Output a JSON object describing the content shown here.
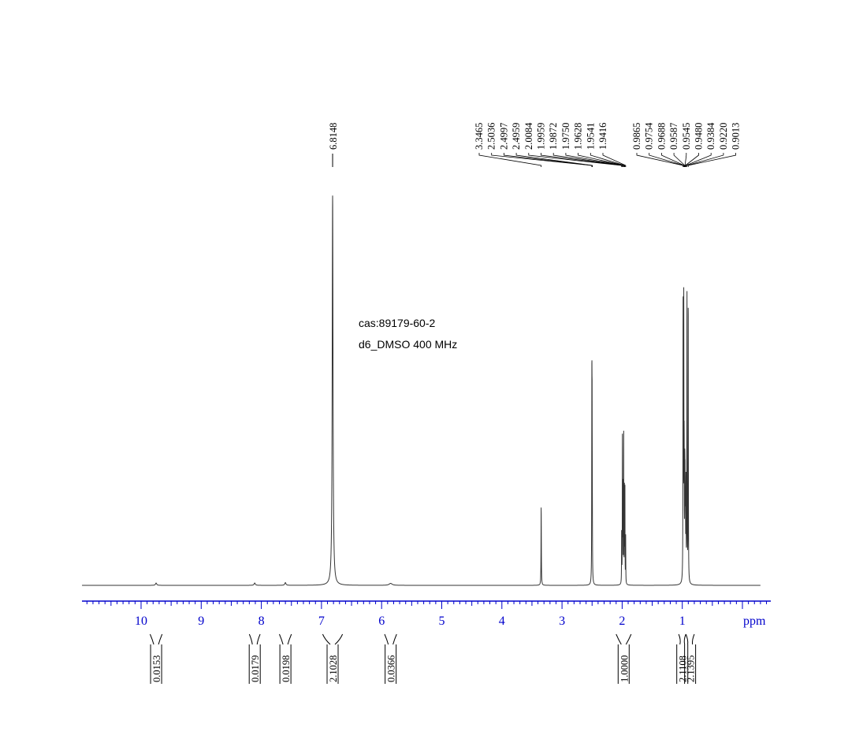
{
  "chart_data": {
    "type": "line",
    "x_unit": "ppm",
    "xlim": [
      11.0,
      -0.3
    ],
    "ylim": [
      0,
      1.0
    ],
    "x_ticks": [
      10,
      9,
      8,
      7,
      6,
      5,
      4,
      3,
      2,
      1
    ],
    "annotation": [
      "cas:89179-60-2",
      "d6_DMSO  400 MHz"
    ],
    "peaks": [
      {
        "ppm": 9.75,
        "height": 0.006,
        "width": 0.012
      },
      {
        "ppm": 8.11,
        "height": 0.006,
        "width": 0.012
      },
      {
        "ppm": 7.6,
        "height": 0.007,
        "width": 0.012
      },
      {
        "ppm": 6.8148,
        "height": 1.0,
        "width": 0.008
      },
      {
        "ppm": 5.85,
        "height": 0.005,
        "width": 0.03
      },
      {
        "ppm": 3.3465,
        "height": 0.205,
        "width": 0.003
      },
      {
        "ppm": 2.5036,
        "height": 0.48,
        "width": 0.0025
      },
      {
        "ppm": 2.4997,
        "height": 0.36,
        "width": 0.0025
      },
      {
        "ppm": 2.4959,
        "height": 0.12,
        "width": 0.0025
      },
      {
        "ppm": 2.0084,
        "height": 0.14,
        "width": 0.002
      },
      {
        "ppm": 1.9959,
        "height": 0.38,
        "width": 0.002
      },
      {
        "ppm": 1.9872,
        "height": 0.27,
        "width": 0.002
      },
      {
        "ppm": 1.975,
        "height": 0.4,
        "width": 0.002
      },
      {
        "ppm": 1.9628,
        "height": 0.24,
        "width": 0.002
      },
      {
        "ppm": 1.9541,
        "height": 0.26,
        "width": 0.002
      },
      {
        "ppm": 1.9416,
        "height": 0.12,
        "width": 0.002
      },
      {
        "ppm": 0.9865,
        "height": 0.72,
        "width": 0.0025
      },
      {
        "ppm": 0.9754,
        "height": 0.68,
        "width": 0.0025
      },
      {
        "ppm": 0.9688,
        "height": 0.3,
        "width": 0.0025
      },
      {
        "ppm": 0.9587,
        "height": 0.25,
        "width": 0.0025
      },
      {
        "ppm": 0.9545,
        "height": 0.2,
        "width": 0.0025
      },
      {
        "ppm": 0.948,
        "height": 0.18,
        "width": 0.0025
      },
      {
        "ppm": 0.9384,
        "height": 0.25,
        "width": 0.0025
      },
      {
        "ppm": 0.922,
        "height": 0.76,
        "width": 0.0025
      },
      {
        "ppm": 0.9013,
        "height": 0.75,
        "width": 0.0025
      }
    ],
    "peak_labels": {
      "single": {
        "ppm": 6.8148,
        "label": "6.8148"
      },
      "group1": {
        "labels": [
          "3.3465",
          "2.5036",
          "2.4997",
          "2.4959",
          "2.0084",
          "1.9959",
          "1.9872",
          "1.9750",
          "1.9628",
          "1.9541",
          "1.9416"
        ],
        "ppm": [
          3.3465,
          2.5036,
          2.4997,
          2.4959,
          2.0084,
          1.9959,
          1.9872,
          1.975,
          1.9628,
          1.9541,
          1.9416
        ]
      },
      "group2": {
        "labels": [
          "0.9865",
          "0.9754",
          "0.9688",
          "0.9587",
          "0.9545",
          "0.9480",
          "0.9384",
          "0.9220",
          "0.9013"
        ],
        "ppm": [
          0.9865,
          0.9754,
          0.9688,
          0.9587,
          0.9545,
          0.948,
          0.9384,
          0.922,
          0.9013
        ]
      }
    },
    "integrals": [
      {
        "from": 9.85,
        "to": 9.65,
        "value": "0.0153"
      },
      {
        "from": 8.2,
        "to": 8.02,
        "value": "0.0179"
      },
      {
        "from": 7.7,
        "to": 7.5,
        "value": "0.0198"
      },
      {
        "from": 6.98,
        "to": 6.65,
        "value": "2.1028"
      },
      {
        "from": 5.95,
        "to": 5.75,
        "value": "0.0366"
      },
      {
        "from": 2.1,
        "to": 1.85,
        "value": "1.0000"
      },
      {
        "from": 1.06,
        "to": 0.94,
        "value": "2.1108"
      },
      {
        "from": 0.94,
        "to": 0.8,
        "value": "2.1395"
      }
    ],
    "colors": {
      "axis": "#0000cc",
      "trace": "#333333",
      "text": "#000000"
    }
  }
}
